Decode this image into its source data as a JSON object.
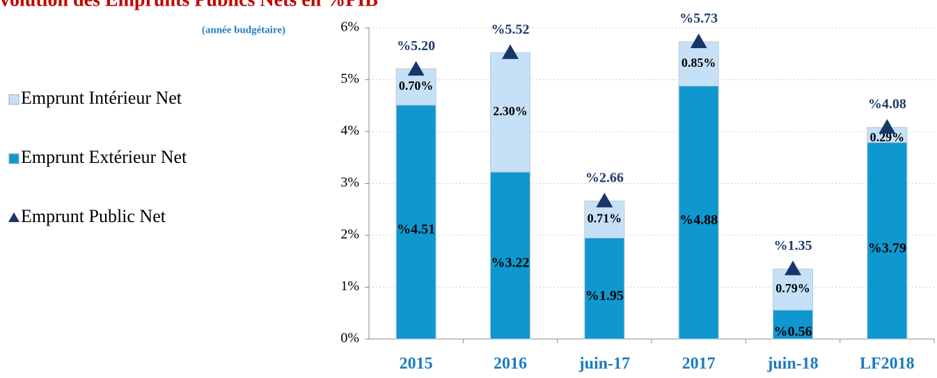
{
  "chart_data": {
    "type": "stacked_bar",
    "title": "volution des Emprunts Publics Nets en %PIB",
    "subtitle": "(année budgétaire)",
    "categories": [
      "2015",
      "2016",
      "juin-17",
      "2017",
      "juin-18",
      "LF2018"
    ],
    "series": [
      {
        "name": "Emprunt Extérieur Net",
        "color": "#0e98cf",
        "values": [
          4.51,
          3.22,
          1.95,
          4.88,
          0.56,
          3.79
        ],
        "value_labels": [
          "%4.51",
          "%3.22",
          "%1.95",
          "%4.88",
          "%0.56",
          "%3.79"
        ]
      },
      {
        "name": "Emprunt Intérieur Net",
        "color": "#c6e1f7",
        "values": [
          0.7,
          2.3,
          0.71,
          0.85,
          0.79,
          0.29
        ],
        "value_labels": [
          "0.70%",
          "2.30%",
          "0.71%",
          "0.85%",
          "0.79%",
          "0.29%"
        ]
      },
      {
        "name": "Emprunt Public Net",
        "type": "marker",
        "marker": "triangle",
        "color": "#17376b",
        "values": [
          5.2,
          5.52,
          2.66,
          5.73,
          1.35,
          4.08
        ],
        "value_labels": [
          "%5.20",
          "%5.52",
          "%2.66",
          "%5.73",
          "%1.35",
          "%4.08"
        ]
      }
    ],
    "legend_order": [
      1,
      0,
      2
    ],
    "ylim": [
      0,
      6
    ],
    "yticks": [
      {
        "value": 0,
        "label": "0%"
      },
      {
        "value": 1,
        "label": "1%"
      },
      {
        "value": 2,
        "label": "2%"
      },
      {
        "value": 3,
        "label": "3%"
      },
      {
        "value": 4,
        "label": "4%"
      },
      {
        "value": 5,
        "label": "5%"
      },
      {
        "value": 6,
        "label": "6%"
      }
    ],
    "grid": true
  }
}
